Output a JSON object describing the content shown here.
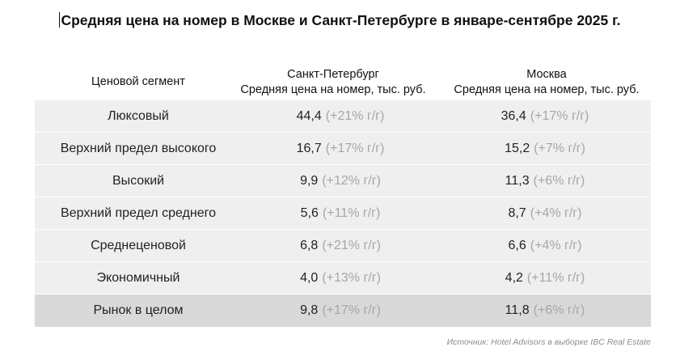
{
  "title": "Средняя цена на номер в Москве и Санкт-Петербурге в январе-сентябре 2025 г.",
  "headers": {
    "segment": "Ценовой сегмент",
    "spb_city": "Санкт-Петербург",
    "spb_metric": "Средняя цена на номер, тыс. руб.",
    "msk_city": "Москва",
    "msk_metric": "Средняя цена на номер, тыс. руб."
  },
  "rows": [
    {
      "segment": "Люксовый",
      "spb_value": "44,4",
      "spb_change": "(+21% г/г)",
      "msk_value": "36,4",
      "msk_change": "(+17% г/г)"
    },
    {
      "segment": "Верхний предел высокого",
      "spb_value": "16,7",
      "spb_change": "(+17% г/г)",
      "msk_value": "15,2",
      "msk_change": "(+7% г/г)"
    },
    {
      "segment": "Высокий",
      "spb_value": "9,9",
      "spb_change": "(+12% г/г)",
      "msk_value": "11,3",
      "msk_change": "(+6% г/г)"
    },
    {
      "segment": "Верхний предел среднего",
      "spb_value": "5,6",
      "spb_change": "(+11% г/г)",
      "msk_value": "8,7",
      "msk_change": "(+4% г/г)"
    },
    {
      "segment": "Среднеценовой",
      "spb_value": "6,8",
      "spb_change": "(+21% г/г)",
      "msk_value": "6,6",
      "msk_change": "(+4% г/г)"
    },
    {
      "segment": "Экономичный",
      "spb_value": "4,0",
      "spb_change": "(+13% г/г)",
      "msk_value": "4,2",
      "msk_change": "(+11% г/г)"
    },
    {
      "segment": "Рынок в целом",
      "spb_value": "9,8",
      "spb_change": "(+17% г/г)",
      "msk_value": "11,8",
      "msk_change": "(+6% г/г)"
    }
  ],
  "source": "Источник: Hotel Advisors в выборке IBC Real Estate",
  "colors": {
    "row_background": "#efefef",
    "total_row_background": "#d9d9d9",
    "change_text": "#a6a6a6"
  },
  "chart_data": {
    "type": "table",
    "title": "Средняя цена на номер в Москве и Санкт-Петербурге в январе-сентябре 2025 г.",
    "columns": [
      "Ценовой сегмент",
      "Санкт-Петербург",
      "Москва"
    ],
    "unit": "тыс. руб.",
    "categories": [
      "Люксовый",
      "Верхний предел высокого",
      "Высокий",
      "Верхний предел среднего",
      "Среднеценовой",
      "Экономичный",
      "Рынок в целом"
    ],
    "series": [
      {
        "name": "Санкт-Петербург",
        "values": [
          44.4,
          16.7,
          9.9,
          5.6,
          6.8,
          4.0,
          9.8
        ],
        "yoy_change_pct": [
          21,
          17,
          12,
          11,
          21,
          13,
          17
        ]
      },
      {
        "name": "Москва",
        "values": [
          36.4,
          15.2,
          11.3,
          8.7,
          6.6,
          4.2,
          11.8
        ],
        "yoy_change_pct": [
          17,
          7,
          6,
          4,
          4,
          11,
          6
        ]
      }
    ]
  }
}
